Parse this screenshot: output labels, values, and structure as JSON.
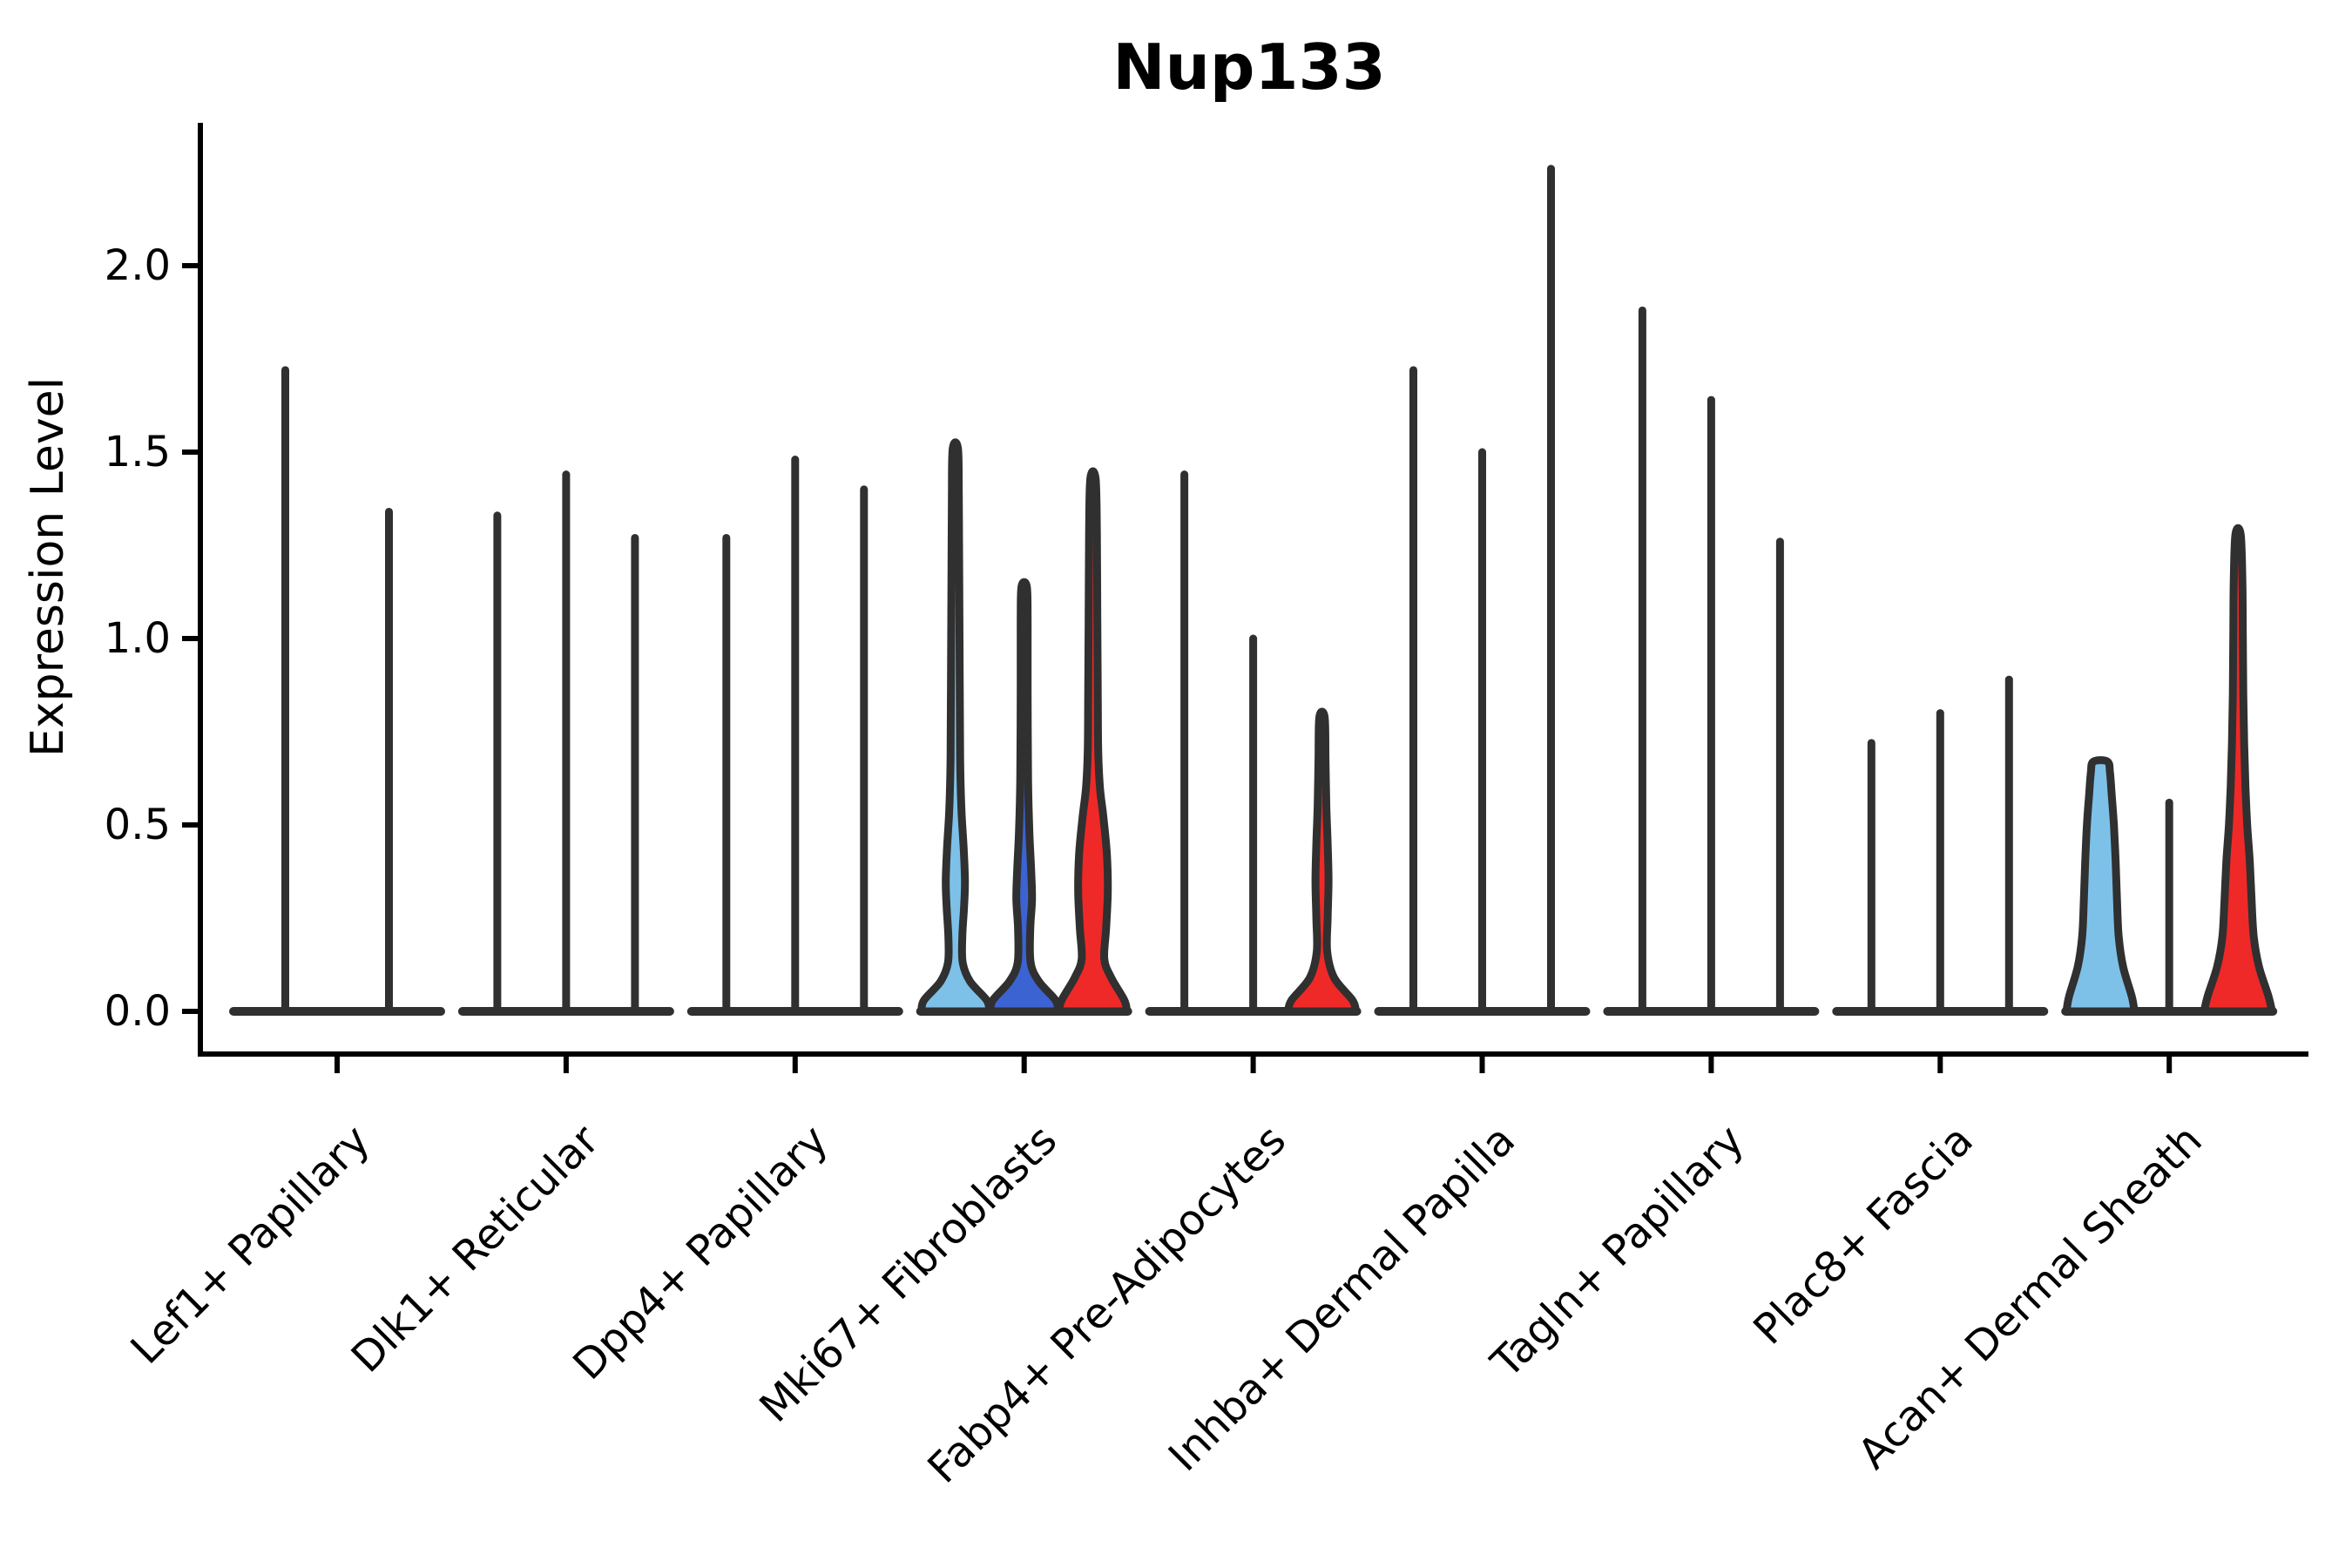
{
  "chart_data": {
    "type": "violin",
    "title": "Nup133",
    "ylabel": "Expression Level",
    "xlabel": "",
    "ylim": [
      0,
      2.39
    ],
    "grid": false,
    "legend": "none",
    "yticks": [
      "0.0",
      "0.5",
      "1.0",
      "1.5",
      "2.0"
    ],
    "ytick_values": [
      0.0,
      0.5,
      1.0,
      1.5,
      2.0
    ],
    "categories": [
      "Lef1+ Papillary",
      "Dlk1+ Reticular",
      "Dpp4+ Papillary",
      "Mki67+ Fibroblasts",
      "Fabp4+ Pre-Adipocytes",
      "Inhba+ Dermal Papilla",
      "Tagln+ Papillary",
      "Plac8+ Fascia",
      "Acan+ Dermal Sheath"
    ],
    "colors": {
      "skyblue": "#7EC1E8",
      "blue": "#3C63D2",
      "red": "#EF2928",
      "outline": "#303030",
      "axis": "#000000",
      "background": "#ffffff"
    },
    "groups": [
      {
        "category": "Lef1+ Papillary",
        "violins": [
          {
            "kind": "spike",
            "max": 1.72
          },
          {
            "kind": "spike",
            "max": 1.34
          }
        ]
      },
      {
        "category": "Dlk1+ Reticular",
        "violins": [
          {
            "kind": "spike",
            "max": 1.33
          },
          {
            "kind": "spike",
            "max": 1.44
          },
          {
            "kind": "spike",
            "max": 1.27
          }
        ]
      },
      {
        "category": "Dpp4+ Papillary",
        "violins": [
          {
            "kind": "spike",
            "max": 1.27
          },
          {
            "kind": "spike",
            "max": 1.48
          },
          {
            "kind": "spike",
            "max": 1.4
          }
        ]
      },
      {
        "category": "Mki67+ Fibroblasts",
        "violins": [
          {
            "kind": "violin",
            "color": "skyblue",
            "max": 1.51,
            "profile": [
              [
                0,
                39
              ],
              [
                0.03,
                36
              ],
              [
                0.08,
                17
              ],
              [
                0.13,
                8.5
              ],
              [
                0.2,
                8
              ],
              [
                0.28,
                10
              ],
              [
                0.35,
                11
              ],
              [
                0.44,
                9.5
              ],
              [
                0.54,
                7
              ],
              [
                0.68,
                5.5
              ],
              [
                0.9,
                5
              ],
              [
                1.15,
                4.5
              ],
              [
                1.38,
                4
              ],
              [
                1.51,
                3
              ]
            ]
          },
          {
            "kind": "violin",
            "color": "blue",
            "max": 1.14,
            "profile": [
              [
                0,
                39
              ],
              [
                0.03,
                36
              ],
              [
                0.08,
                17
              ],
              [
                0.13,
                7.5
              ],
              [
                0.22,
                7
              ],
              [
                0.3,
                9
              ],
              [
                0.38,
                8
              ],
              [
                0.48,
                6
              ],
              [
                0.62,
                4.5
              ],
              [
                0.85,
                4
              ],
              [
                1.05,
                4
              ],
              [
                1.14,
                3
              ]
            ]
          },
          {
            "kind": "violin",
            "color": "red",
            "max": 1.43,
            "profile": [
              [
                0,
                39
              ],
              [
                0.03,
                36
              ],
              [
                0.09,
                21
              ],
              [
                0.14,
                13
              ],
              [
                0.22,
                15
              ],
              [
                0.32,
                17
              ],
              [
                0.42,
                16
              ],
              [
                0.52,
                12
              ],
              [
                0.6,
                8
              ],
              [
                0.7,
                6
              ],
              [
                0.85,
                5.5
              ],
              [
                1.05,
                5
              ],
              [
                1.28,
                4.5
              ],
              [
                1.43,
                3
              ]
            ]
          }
        ]
      },
      {
        "category": "Fabp4+ Pre-Adipocytes",
        "violins": [
          {
            "kind": "spike",
            "max": 1.44
          },
          {
            "kind": "spike",
            "max": 1.0
          },
          {
            "kind": "violin",
            "color": "red",
            "max": 0.79,
            "profile": [
              [
                0,
                39
              ],
              [
                0.03,
                35
              ],
              [
                0.09,
                14
              ],
              [
                0.16,
                6
              ],
              [
                0.25,
                6.5
              ],
              [
                0.35,
                7.5
              ],
              [
                0.45,
                6.5
              ],
              [
                0.55,
                5
              ],
              [
                0.68,
                4
              ],
              [
                0.79,
                3
              ]
            ]
          }
        ]
      },
      {
        "category": "Inhba+ Dermal Papilla",
        "violins": [
          {
            "kind": "spike",
            "max": 1.72
          },
          {
            "kind": "spike",
            "max": 1.5
          },
          {
            "kind": "spike",
            "max": 2.26
          }
        ]
      },
      {
        "category": "Tagln+ Papillary",
        "violins": [
          {
            "kind": "spike",
            "max": 1.88
          },
          {
            "kind": "spike",
            "max": 1.64
          },
          {
            "kind": "spike",
            "max": 1.26
          }
        ]
      },
      {
        "category": "Plac8+ Fascia",
        "violins": [
          {
            "kind": "spike",
            "max": 0.72
          },
          {
            "kind": "spike",
            "max": 0.8
          },
          {
            "kind": "spike",
            "max": 0.89
          }
        ]
      },
      {
        "category": "Acan+ Dermal Sheath",
        "violins": [
          {
            "kind": "violin",
            "color": "skyblue",
            "max": 0.67,
            "profile": [
              [
                0,
                39
              ],
              [
                0.04,
                36
              ],
              [
                0.12,
                26
              ],
              [
                0.2,
                21
              ],
              [
                0.3,
                19
              ],
              [
                0.4,
                17.5
              ],
              [
                0.5,
                15.5
              ],
              [
                0.58,
                13
              ],
              [
                0.64,
                11
              ],
              [
                0.67,
                8
              ]
            ]
          },
          {
            "kind": "spike",
            "max": 0.56
          },
          {
            "kind": "violin",
            "color": "red",
            "max": 1.28,
            "profile": [
              [
                0,
                39
              ],
              [
                0.04,
                35
              ],
              [
                0.12,
                24
              ],
              [
                0.2,
                18
              ],
              [
                0.3,
                15.5
              ],
              [
                0.4,
                13.5
              ],
              [
                0.5,
                10.5
              ],
              [
                0.6,
                8.5
              ],
              [
                0.72,
                7
              ],
              [
                0.85,
                6
              ],
              [
                1.0,
                5.5
              ],
              [
                1.15,
                5
              ],
              [
                1.28,
                3
              ]
            ]
          }
        ]
      }
    ]
  }
}
